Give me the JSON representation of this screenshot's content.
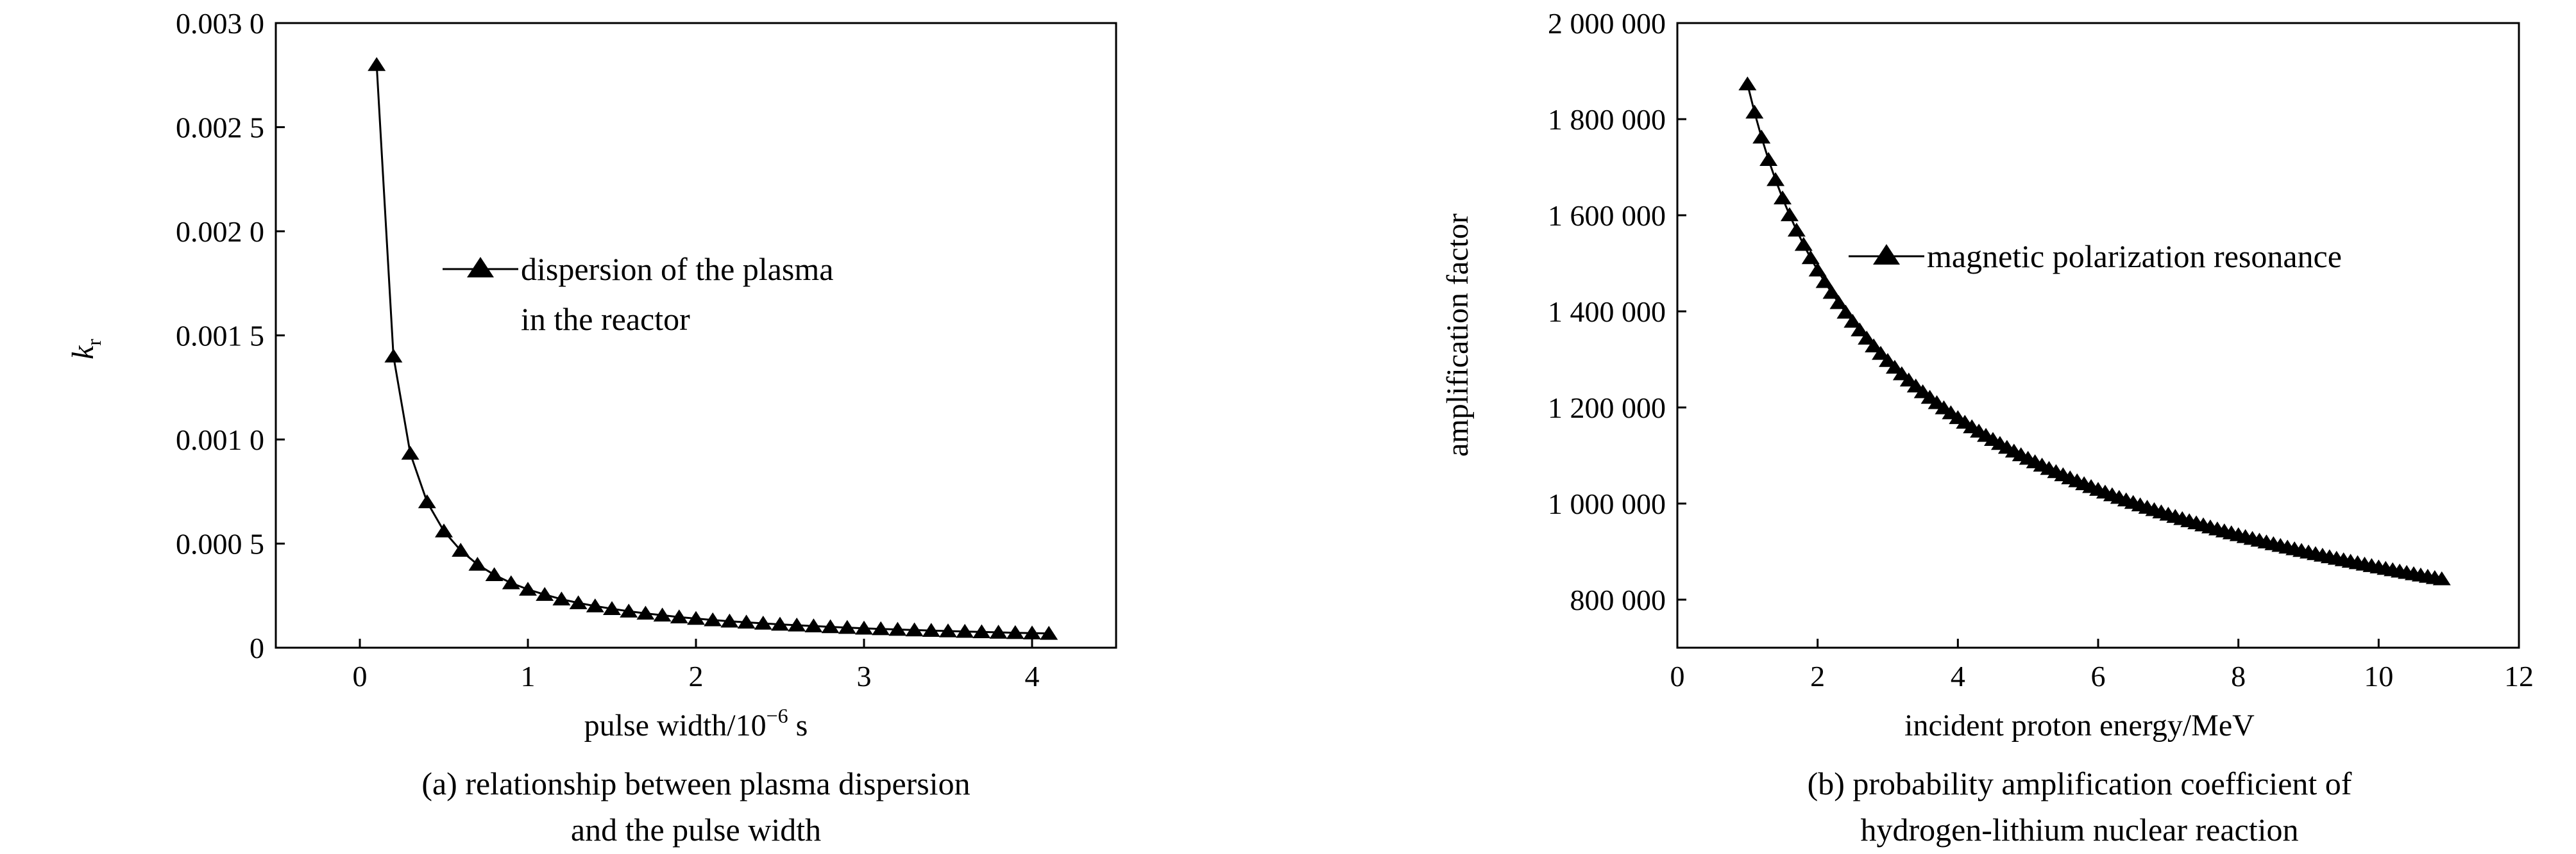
{
  "chart_data": [
    {
      "type": "line",
      "caption": [
        "(a) relationship between plasma dispersion",
        "and the pulse width"
      ],
      "xlabel_prefix": "pulse width/10",
      "xlabel_exp": "−6",
      "xlabel_suffix": " s",
      "ylabel_main": "k",
      "ylabel_sub": "r",
      "xlim": [
        -0.5,
        4.5
      ],
      "ylim": [
        0,
        0.003
      ],
      "xticks": [
        0,
        1,
        2,
        3,
        4
      ],
      "yticks": [
        0,
        0.0005,
        0.001,
        0.0015,
        0.002,
        0.0025,
        0.003
      ],
      "ytick_labels": [
        "0",
        "0.000 5",
        "0.001 0",
        "0.001 5",
        "0.002 0",
        "0.002 5",
        "0.003 0"
      ],
      "grid": false,
      "legend_position": "center",
      "legend_lines": [
        "dispersion of the plasma",
        "in the reactor"
      ],
      "series": [
        {
          "x": [
            0.1,
            0.2,
            0.3,
            0.4,
            0.5,
            0.6,
            0.7,
            0.8,
            0.9,
            1.0,
            1.1,
            1.2,
            1.3,
            1.4,
            1.5,
            1.6,
            1.7,
            1.8,
            1.9,
            2.0,
            2.1,
            2.2,
            2.3,
            2.4,
            2.5,
            2.6,
            2.7,
            2.8,
            2.9,
            3.0,
            3.1,
            3.2,
            3.3,
            3.4,
            3.5,
            3.6,
            3.7,
            3.8,
            3.9,
            4.0,
            4.1
          ],
          "y": [
            0.0028,
            0.0014,
            0.000933,
            0.0007,
            0.00056,
            0.000467,
            0.0004,
            0.00035,
            0.000311,
            0.00028,
            0.000255,
            0.000233,
            0.000215,
            0.0002,
            0.000187,
            0.000175,
            0.000165,
            0.000156,
            0.000147,
            0.00014,
            0.000133,
            0.000127,
            0.000122,
            0.000117,
            0.000112,
            0.000108,
            0.000104,
            0.0001,
            9.66e-05,
            9.33e-05,
            9.03e-05,
            8.75e-05,
            8.48e-05,
            8.24e-05,
            8e-05,
            7.78e-05,
            7.57e-05,
            7.37e-05,
            7.18e-05,
            7e-05,
            6.83e-05
          ]
        }
      ]
    },
    {
      "type": "line",
      "caption": [
        "(b) probability amplification coefficient of",
        "hydrogen-lithium nuclear reaction"
      ],
      "xlabel": "incident proton energy/MeV",
      "ylabel": "amplification factor",
      "xlim": [
        0,
        12
      ],
      "ylim": [
        700000,
        2000000
      ],
      "xticks": [
        0,
        2,
        4,
        6,
        8,
        10,
        12
      ],
      "yticks": [
        800000,
        1000000,
        1200000,
        1400000,
        1600000,
        1800000,
        2000000
      ],
      "ytick_labels": [
        "800 000",
        "1 000 000",
        "1 200 000",
        "1 400 000",
        "1 600 000",
        "1 800 000",
        "2 000 000"
      ],
      "grid": false,
      "legend_position": "upper-right",
      "legend_lines": [
        "magnetic polarization resonance"
      ],
      "series": [
        {
          "x_start": 1.0,
          "x_end": 10.9,
          "x_step": 0.1,
          "y_start": 1873000,
          "y_end": 843000,
          "power": 0.335
        }
      ]
    }
  ]
}
